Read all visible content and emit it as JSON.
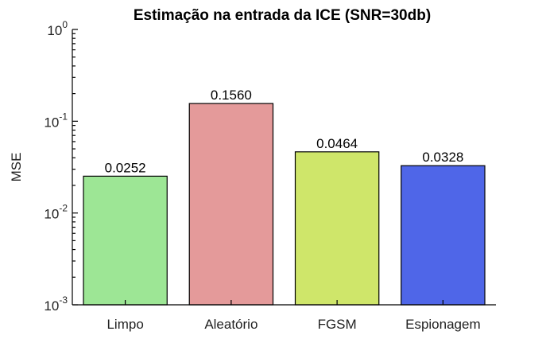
{
  "chart_data": {
    "type": "bar",
    "title": "Estimação na entrada da ICE (SNR=30db)",
    "xlabel": "",
    "ylabel": "MSE",
    "yscale": "log",
    "ylim": [
      0.001,
      1
    ],
    "yticks": [
      {
        "base": "10",
        "exp": "0",
        "value": 1
      },
      {
        "base": "10",
        "exp": "-1",
        "value": 0.1
      },
      {
        "base": "10",
        "exp": "-2",
        "value": 0.01
      },
      {
        "base": "10",
        "exp": "-3",
        "value": 0.001
      }
    ],
    "grid": false,
    "categories": [
      "Limpo",
      "Aleatório",
      "FGSM",
      "Espionagem"
    ],
    "values": [
      0.0252,
      0.156,
      0.0464,
      0.0328
    ],
    "data_labels": [
      "0.0252",
      "0.1560",
      "0.0464",
      "0.0328"
    ],
    "colors": [
      "#9de695",
      "#e49a9a",
      "#cfe66a",
      "#4f66e8"
    ]
  }
}
